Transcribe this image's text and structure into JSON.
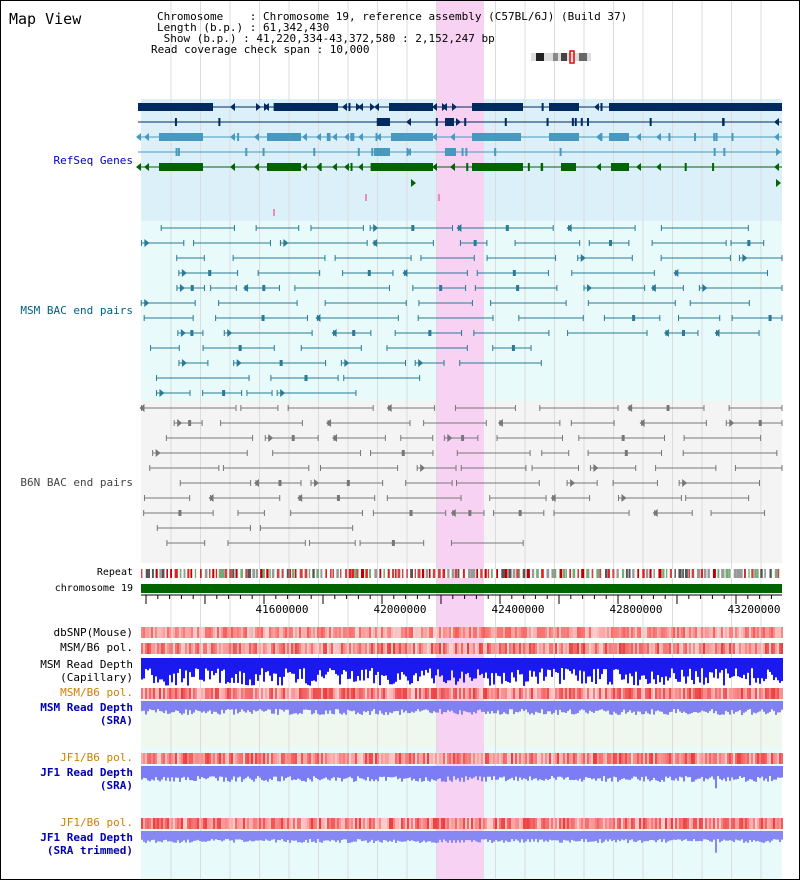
{
  "window": {
    "title": "Map View"
  },
  "info": {
    "chromosome": "Chromosome    : Chromosome 19, reference assembly (C57BL/6J) (Build 37)",
    "length": "Length (b.p.) : 61,342,430",
    "show": " Show (b.p.) : 41,220,334-43,372,580 : 2,152,247 bp",
    "read_coverage": "Read coverage check span : 10,000"
  },
  "tracks": {
    "refseq": "RefSeq Genes",
    "msm_bac": "MSM BAC end pairs",
    "b6n_bac": "B6N BAC end pairs",
    "repeat": "Repeat",
    "chromosome": "chromosome 19",
    "dbsnp": "dbSNP(Mouse)",
    "msm_b6_pol_1": "MSM/B6 pol.",
    "msm_read_depth_cap_1": "MSM Read Depth",
    "msm_read_depth_cap_2": "(Capillary)",
    "msm_b6_pol_2": "MSM/B6 pol.",
    "msm_read_depth_sra_1": "MSM Read Depth",
    "msm_read_depth_sra_2": "(SRA)",
    "jf1_b6_pol_1": "JF1/B6 pol.",
    "jf1_read_depth_sra_1": "JF1 Read Depth",
    "jf1_read_depth_sra_2": "(SRA)",
    "jf1_b6_pol_2": "JF1/B6 pol.",
    "jf1_read_depth_trim_1": "JF1 Read Depth",
    "jf1_read_depth_trim_2": "(SRA trimmed)"
  },
  "axis": {
    "ticks": [
      "41600000",
      "42000000",
      "42400000",
      "42800000",
      "43200000"
    ]
  },
  "colors": {
    "refseq_bg": "#dcf0fa",
    "bac_bg": "#e8fafa",
    "b6n_bg": "#f4f4f4",
    "highlight": "#f8d8f4",
    "gene_dark": "#002a60",
    "gene_mid": "#4898c0",
    "gene_green": "#006400",
    "chromosome_bar": "#006400"
  }
}
